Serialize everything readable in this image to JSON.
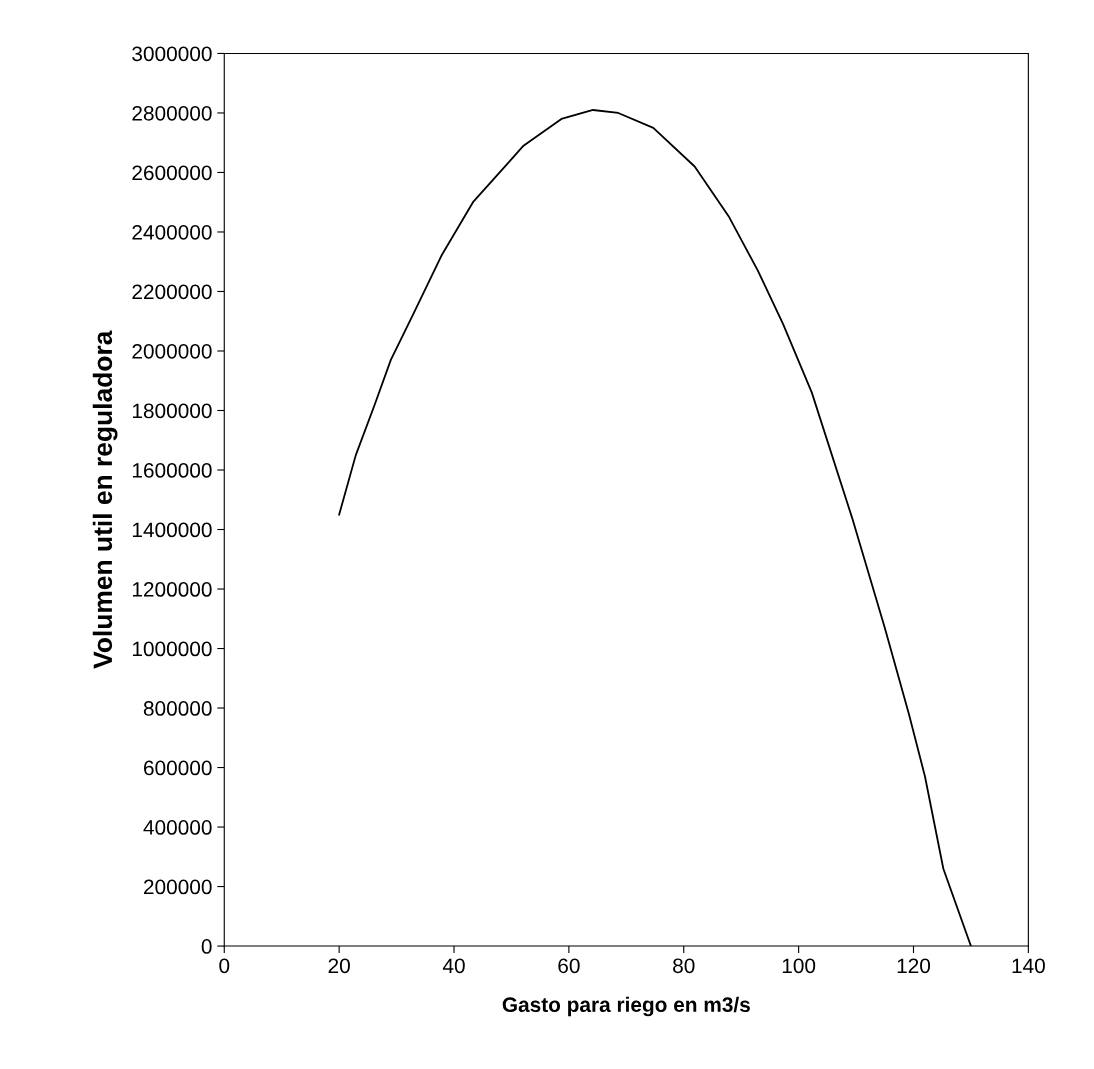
{
  "chart_data": {
    "type": "line",
    "xlabel": "Gasto para riego en m3/s",
    "ylabel": "Volumen util en reguladora",
    "x": [
      20,
      22.9,
      26.2,
      29.0,
      32.8,
      37.8,
      43.3,
      52.1,
      58.7,
      64.2,
      68.6,
      74.7,
      81.9,
      87.9,
      92.9,
      97.3,
      102.3,
      109.3,
      115.0,
      119.2,
      122.0,
      125.2,
      130
    ],
    "series": [
      {
        "color": "#000000",
        "values": [
          1450000,
          1650000,
          1820000,
          1970000,
          2120000,
          2320000,
          2500000,
          2690000,
          2780000,
          2810000,
          2800000,
          2750000,
          2620000,
          2450000,
          2270000,
          2090000,
          1860000,
          1440000,
          1070000,
          780000,
          570000,
          260000,
          0
        ]
      }
    ],
    "xlim": [
      0,
      140
    ],
    "xticks": [
      0,
      20,
      40,
      60,
      80,
      100,
      120,
      140
    ],
    "ylim": [
      0,
      3000000
    ],
    "yticks": [
      0,
      200000,
      400000,
      600000,
      800000,
      1000000,
      1200000,
      1400000,
      1600000,
      1800000,
      2000000,
      2200000,
      2400000,
      2600000,
      2800000,
      3000000
    ],
    "grid": false,
    "marker": "none",
    "line_style": "solid"
  }
}
